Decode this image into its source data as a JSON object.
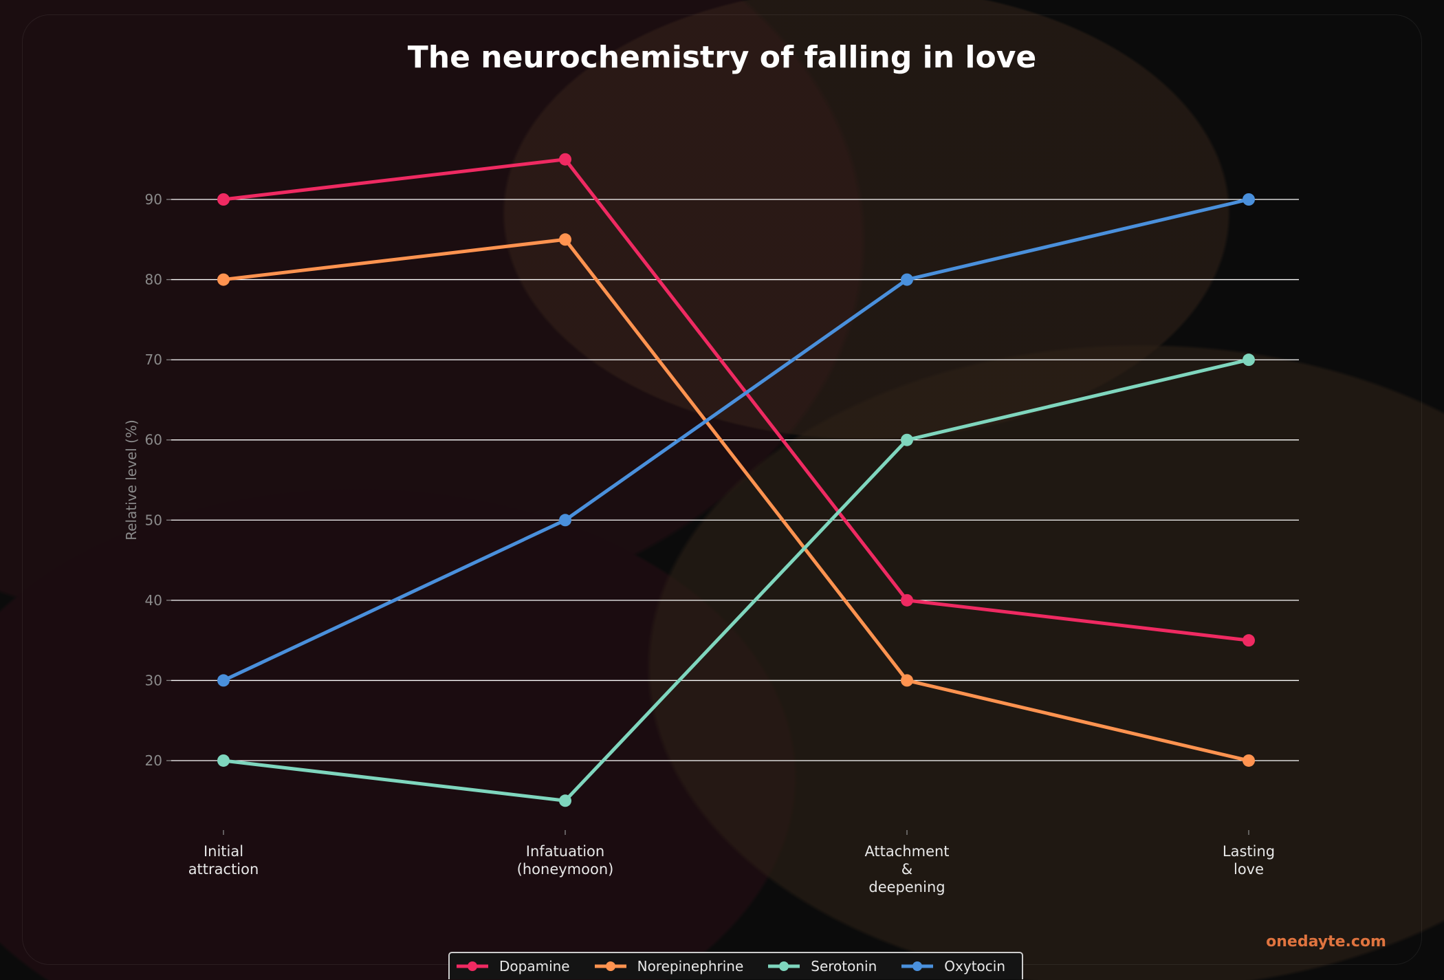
{
  "watermark": "onedayte.com",
  "chart_data": {
    "type": "line",
    "title": "The neurochemistry of falling in love",
    "xlabel": "",
    "ylabel": "Relative level (%)",
    "categories": [
      "Initial\nattraction",
      "Infatuation\n(honeymoon)",
      "Attachment\n&\ndeepening",
      "Lasting\nlove"
    ],
    "yticks": [
      20,
      30,
      40,
      50,
      60,
      70,
      80,
      90
    ],
    "ylim": [
      10,
      97
    ],
    "grid": "horizontal",
    "legend_position": "bottom",
    "series": [
      {
        "name": "Dopamine",
        "color": "#ef2a62",
        "values": [
          90,
          95,
          40,
          35
        ]
      },
      {
        "name": "Norepinephrine",
        "color": "#ff9350",
        "values": [
          80,
          85,
          30,
          20
        ]
      },
      {
        "name": "Serotonin",
        "color": "#7fd6be",
        "values": [
          20,
          15,
          60,
          70
        ]
      },
      {
        "name": "Oxytocin",
        "color": "#4a90dc",
        "values": [
          30,
          50,
          80,
          90
        ]
      }
    ]
  }
}
